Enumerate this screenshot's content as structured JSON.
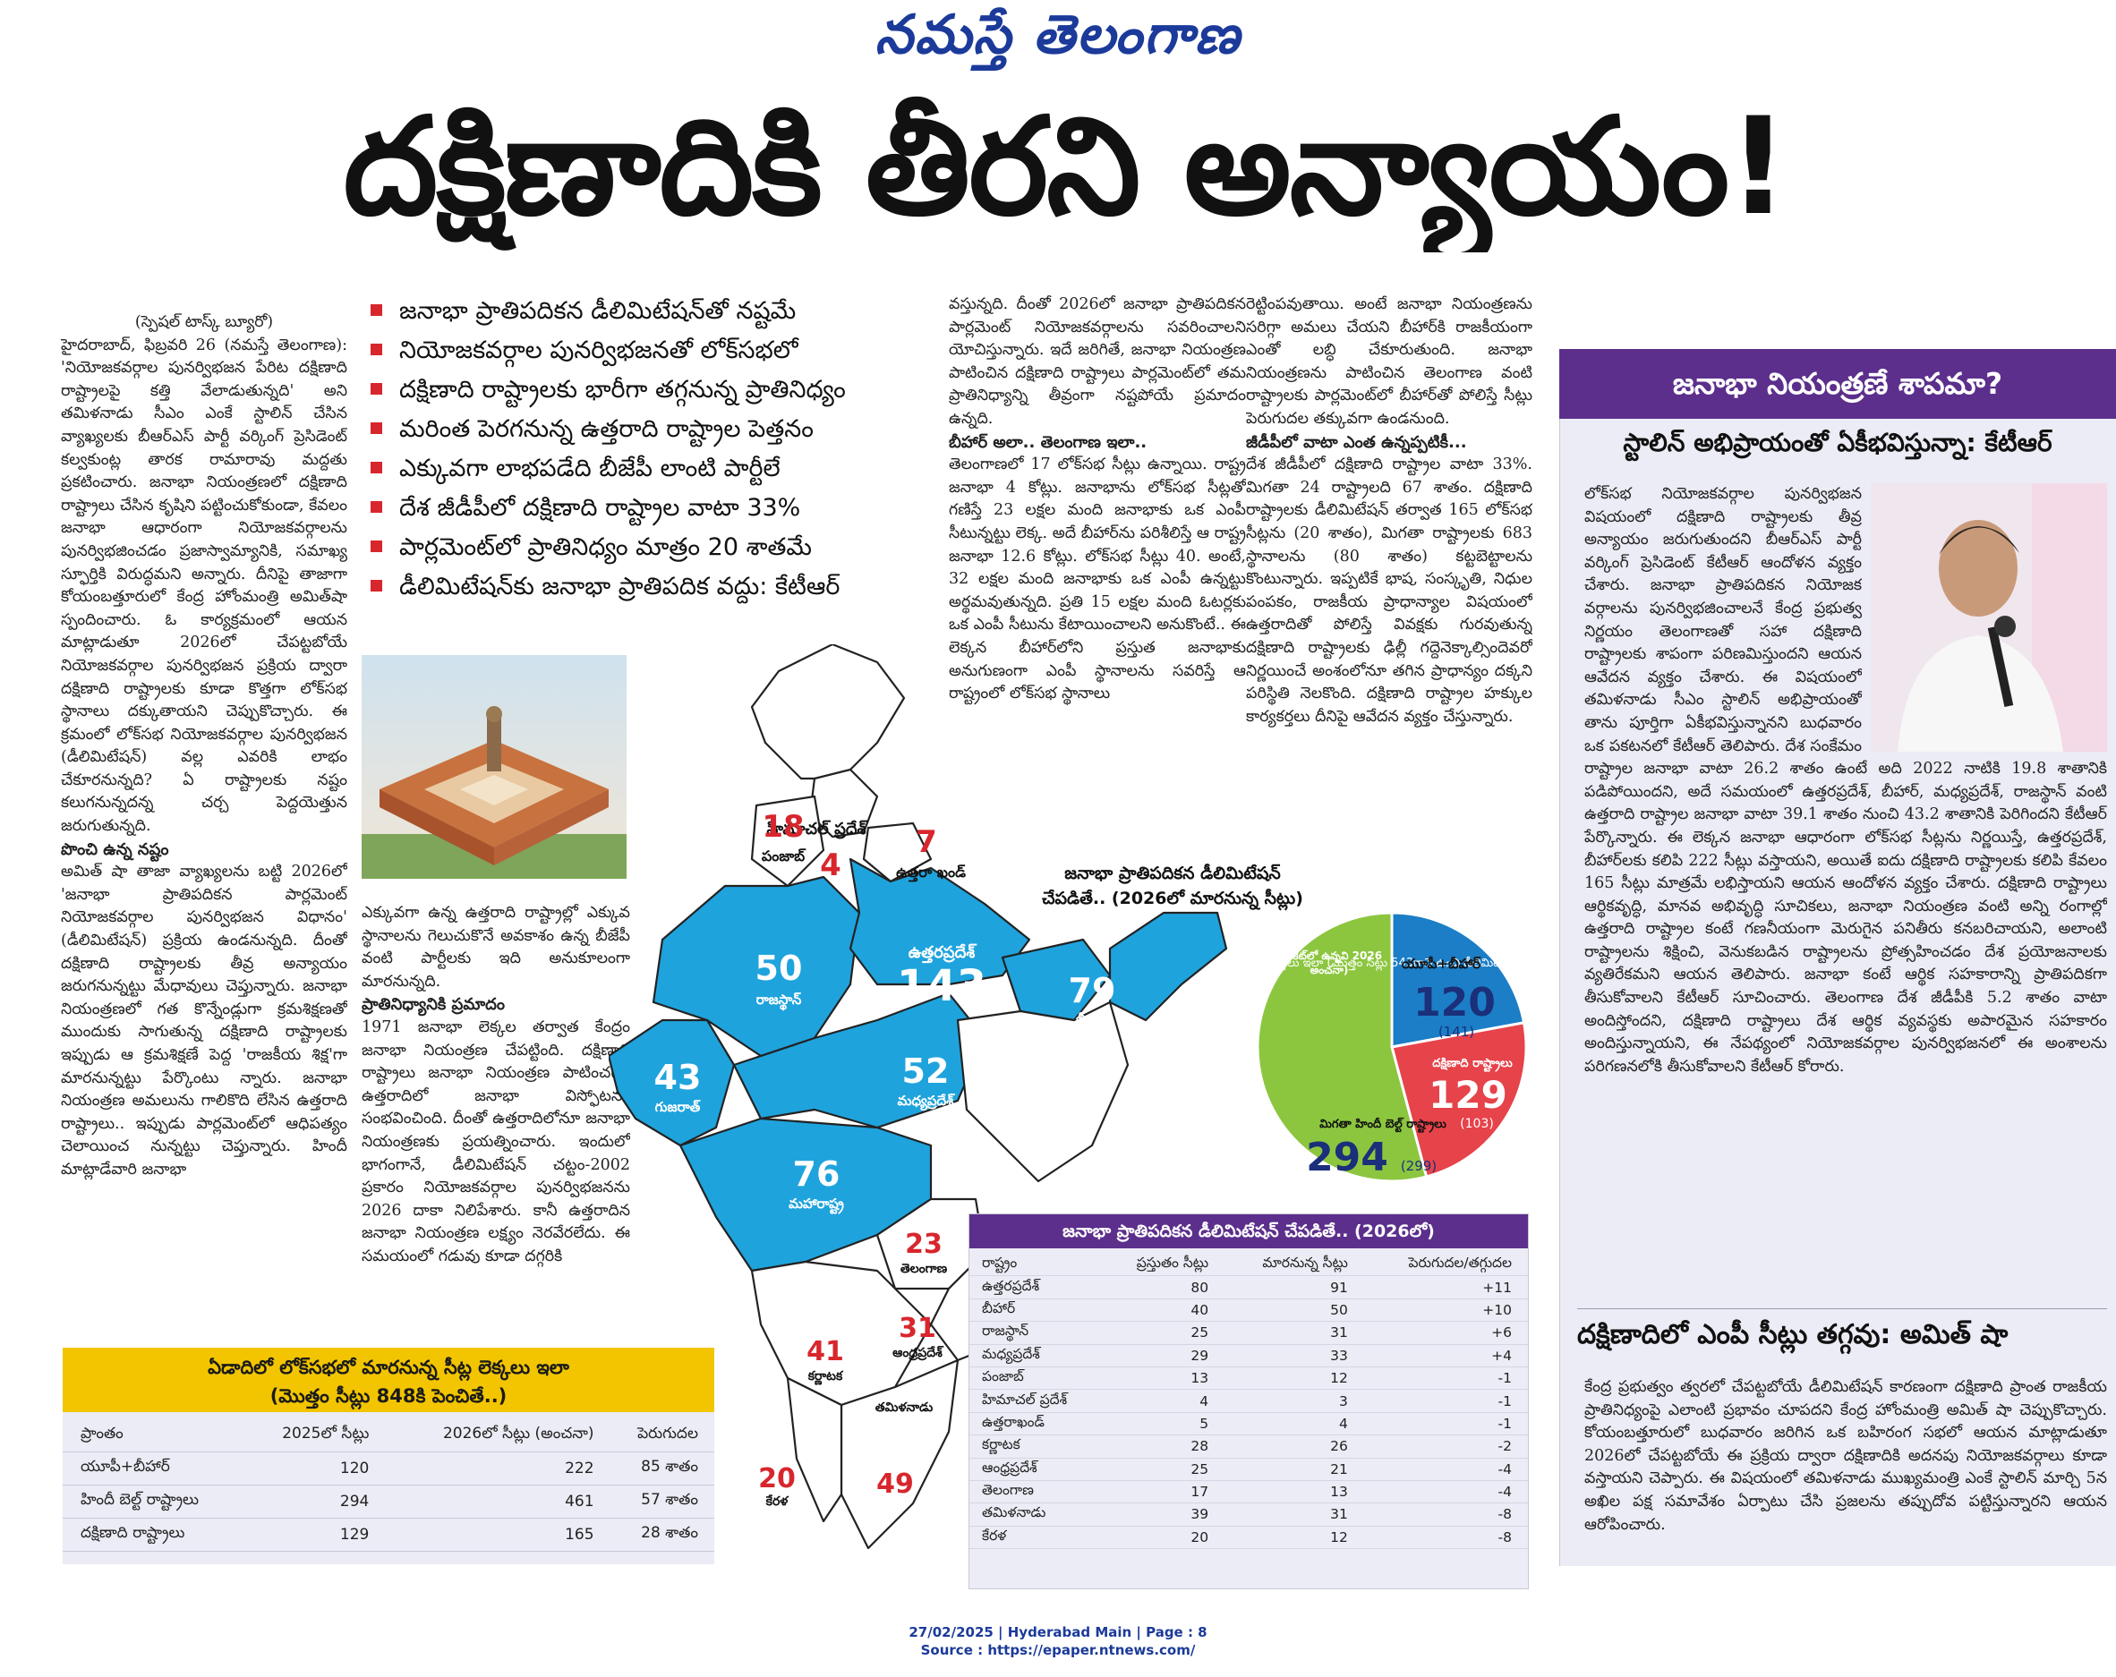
{
  "masthead": "నమస్తే తెలంగాణ",
  "headline": "దక్షిణాదికి తీరని అన్యాయం!",
  "bullets": [
    "జనాభా ప్రాతిపదికన డీలిమిటేషన్‌తో నష్టమే",
    "నియోజకవర్గాల పునర్విభజనతో లోక్‌సభలో",
    "దక్షిణాది రాష్ట్రాలకు భారీగా తగ్గనున్న ప్రాతినిధ్యం",
    "మరింత పెరగనున్న ఉత్తరాది రాష్ట్రాల పెత్తనం",
    "ఎక్కువగా లాభపడేది బీజేపీ లాంటి పార్టీలే",
    "దేశ జీడీపీలో దక్షిణాది రాష్ట్రాల వాటా 33%",
    "పార్లమెంట్‌లో ప్రాతినిధ్యం మాత్రం 20 శాతమే",
    "డీలిమిటేషన్‌కు జనాభా ప్రాతిపదిక వద్దు: కేటీఆర్"
  ],
  "col1": {
    "byline": "(స్పెషల్ టాస్క్ బ్యూరో)",
    "para1": "హైదరాబాద్, ఫిబ్రవరి 26 (నమస్తే తెలంగాణ): 'నియోజకవర్గాల పునర్విభజన పేరిట దక్షిణాది రాష్ట్రాలపై కత్తి వేలాడుతున్నది' అని తమిళనాడు సీఎం ఎంకే స్టాలిన్ చేసిన వ్యాఖ్యలకు బీఆర్ఎస్ పార్టీ వర్కింగ్ ప్రెసిడెంట్ కల్వకుంట్ల తారక రామారావు మద్దతు ప్రకటించారు. జనాభా నియంత్రణలో దక్షిణాది రాష్ట్రాలు చేసిన కృషిని పట్టించుకోకుండా, కేవలం జనాభా ఆధారంగా నియోజకవర్గాలను పునర్విభజించడం ప్రజాస్వామ్యానికి, సమాఖ్య స్ఫూర్తికి విరుద్ధమని అన్నారు. దీనిపై తాజాగా కోయంబత్తూరులో కేంద్ర హోంమంత్రి అమిత్‌షా స్పందించారు. ఓ కార్యక్రమంలో ఆయన మాట్లాడుతూ 2026లో చేపట్టబోయే నియోజకవర్గాల పునర్విభజన ప్రక్రియ ద్వారా దక్షిణాది రాష్ట్రాలకు కూడా కొత్తగా లోక్‌సభ స్థానాలు దక్కుతాయని చెప్పుకొచ్చారు. ఈ క్రమంలో లోక్‌సభ నియోజకవర్గాల పునర్విభజన (డీలిమిటేషన్) వల్ల ఎవరికి లాభం చేకూరనున్నది? ఏ రాష్ట్రాలకు నష్టం కలుగనున్నదన్న చర్చ పెద్దయెత్తున జరుగుతున్నది.",
    "sub1": "పొంచి ఉన్న నష్టం",
    "para2": "అమిత్ షా తాజా వ్యాఖ్యలను బట్టి 2026లో 'జనాభా ప్రాతిపదికన పార్లమెంట్ నియోజకవర్గాల పునర్విభజన విధానం' (డీలిమిటేషన్) ప్రక్రియ ఉండనున్నది. దీంతో దక్షిణాది రాష్ట్రాలకు తీవ్ర అన్యాయం జరుగనున్నట్టు మేధావులు చెప్తున్నారు. జనాభా నియంత్రణలో గత కొన్నేండ్లుగా క్రమశిక్షణతో ముందుకు సాగుతున్న దక్షిణాది రాష్ట్రాలకు ఇప్పుడు ఆ క్రమశిక్షణే పెద్ద 'రాజకీయ శిక్ష'గా మారనున్నట్టు పేర్కొంటు న్నారు. జనాభా నియంత్రణ అమలును గాలికొది లేసిన ఉత్తరాది రాష్ట్రాలు.. ఇప్పుడు పార్లమెంట్‌లో ఆధిపత్యం చెలాయించ నున్నట్టు చెప్తున్నారు. హిందీ మాట్లాడేవారి జనాభా"
  },
  "col2": {
    "para1": "ఎక్కువగా ఉన్న ఉత్తరాది రాష్ట్రాల్లో ఎక్కువ స్థానాలను గెలుచుకొనే అవకాశం ఉన్న బీజేపీ వంటి పార్టీలకు ఇది అనుకూలంగా మారనున్నది.",
    "sub1": "ప్రాతినిధ్యానికి ప్రమాదం",
    "para2": "1971 జనాభా లెక్కల తర్వాత కేంద్రం జనాభా నియంత్రణ చేపట్టింది. దక్షిణాది రాష్ట్రాలు జనాభా నియంత్రణ పాటించగా, ఉత్తరాదిలో జనాభా విస్ఫోటనం సంభవించింది. దీంతో ఉత్తరాదిలోనూ జనాభా నియంత్రణకు ప్రయత్నించారు. ఇందులో భాగంగానే, డీలిమిటేషన్ చట్టం-2002 ప్రకారం నియోజకవర్గాల పునర్విభజనను 2026 దాకా నిలిపేశారు. కానీ ఉత్తరాదిన జనాభా నియంత్రణ లక్ష్యం నెరవేరలేదు. ఈ సమయంలో గడువు కూడా దగ్గరికి"
  },
  "col3": {
    "para1": "వస్తున్నది. దీంతో 2026లో జనాభా ప్రాతిపదికన పార్లమెంట్ నియోజకవర్గాలను సవరించాలని యోచిస్తున్నారు. ఇదే జరిగితే, జనాభా నియంత్రణ పాటించిన దక్షిణాది రాష్ట్రాలు పార్లమెంట్‌లో తమ ప్రాతినిధ్యాన్ని తీవ్రంగా నష్టపోయే ప్రమాదం ఉన్నది.",
    "sub1": "బీహార్ అలా.. తెలంగాణ ఇలా..",
    "para2": "తెలంగాణలో 17 లోక్‌సభ సీట్లు ఉన్నాయి. రాష్ట్ర జనాభా 4 కోట్లు. జనాభాను లోక్‌సభ సీట్లతో గణిస్తే 23 లక్షల మంది జనాభాకు ఒక ఎంపీ సీటున్నట్టు లెక్క. అదే బీహార్‌ను పరిశీలిస్తే ఆ రాష్ట్ర జనాభా 12.6 కోట్లు. లోక్‌సభ సీట్లు 40. అంటే, 32 లక్షల మంది జనాభాకు ఒక ఎంపీ ఉన్నట్టు అర్థమవుతున్నది. ప్రతి 15 లక్షల మంది ఓటర్లకు ఒక ఎంపీ సీటును కేటాయించాలని అనుకొంటే.. ఈ లెక్కన బీహార్‌లోని ప్రస్తుత జనాభాకు అనుగుణంగా ఎంపీ స్థానాలను సవరిస్తే ఆ రాష్ట్రంలో లోక్‌సభ స్థానాలు"
  },
  "col4": {
    "para1": "రెట్టింపవుతాయి. అంటే జనాభా నియంత్రణను సరిగ్గా అమలు చేయని బీహార్‌కి రాజకీయంగా ఎంతో లబ్ధి చేకూరుతుంది. జనాభా నియంత్రణను పాటించిన తెలంగాణ వంటి రాష్ట్రాలకు పార్లమెంట్‌లో బీహార్‌తో పోలిస్తే సీట్లు పెరుగుదల తక్కువగా ఉండనుంది.",
    "sub1": "జీడీపీలో వాటా ఎంత ఉన్నప్పటికీ...",
    "para2": "దేశ జీడీపీలో దక్షిణాది రాష్ట్రాల వాటా 33%. మిగతా 24 రాష్ట్రాలది 67 శాతం. దక్షిణాది రాష్ట్రాలకు డీలిమిటేషన్ తర్వాత 165 లోక్‌సభ సీట్లను (20 శాతం), మిగతా రాష్ట్రాలకు 683 స్థానాలను (80 శాతం) కట్టబెట్టాలను కొంటున్నారు. ఇప్పటికే భాష, సంస్కృతి, నిధుల పంపకం, రాజకీయ ప్రాధాన్యాల విషయంలో ఉత్తరాదితో పోలిస్తే వివక్షకు గురవుతున్న దక్షిణాది రాష్ట్రాలకు ఢిల్లీ గద్దెనెక్కాల్సిందెవరో నిర్ణయించే అంశంలోనూ తగిన ప్రాధాన్యం దక్కని పరిస్థితి నెలకొంది. దక్షిణాది రాష్ట్రాల హక్కుల కార్యకర్తలు దీనిపై ఆవేదన వ్యక్తం చేస్తున్నారు."
  },
  "map": {
    "title_line1": "జనాభా ప్రాతిపదికన డీలిమిటేషన్",
    "title_line2": "చేపడితే.. (2026లో మారనున్న సీట్లు)",
    "states": [
      {
        "name": "హిమాచల్ ప్రదేశ్",
        "value": "4"
      },
      {
        "name": "పంజాబ్",
        "value": "18"
      },
      {
        "name": "ఉత్తరా ఖండ్",
        "value": "7"
      },
      {
        "name": "ఉత్తరప్రదేశ్",
        "value": "143"
      },
      {
        "name": "రాజస్థాన్",
        "value": "50"
      },
      {
        "name": "బీహార్",
        "value": "79"
      },
      {
        "name": "గుజరాత్",
        "value": "43"
      },
      {
        "name": "మధ్యప్రదేశ్",
        "value": "52"
      },
      {
        "name": "మహారాష్ట్ర",
        "value": "76"
      },
      {
        "name": "తెలంగాణ",
        "value": "23"
      },
      {
        "name": "ఆంధ్రప్రదేశ్",
        "value": "31"
      },
      {
        "name": "కర్ణాటక",
        "value": "41"
      },
      {
        "name": "తమిళనాడు",
        "value": "49"
      },
      {
        "name": "కేరళ",
        "value": "20"
      }
    ],
    "colors": {
      "blue": "#1fa3dd",
      "white": "#ffffff",
      "red_text": "#d8262d",
      "navy_text": "#1b2f7a"
    }
  },
  "pie": {
    "caption": "2025లో లోక్‌సభలో మారనున్న సీట్ల లెక్కలు ఇలా (మొత్తం సీట్లు 543గానే ఉంచి డీలిమిటేషన్ చేస్తే..)",
    "caption2": "(బ్రాకెట్‌లో ఉన్నవి 2026 అంచనా)",
    "segments": [
      {
        "label": "యూపీ+బీహార్",
        "value": 120,
        "projection": "(141)",
        "color": "#1b7ec6"
      },
      {
        "label": "దక్షిణాది రాష్ట్రాలు",
        "value": 129,
        "projection": "(103)",
        "color": "#e6434a"
      },
      {
        "label": "మిగతా హిందీ బెల్ట్ రాష్ట్రాలు",
        "value": 294,
        "projection": "(299)",
        "color": "#8cc63f"
      }
    ]
  },
  "table1": {
    "title_line1": "ఏడాదిలో లోక్‌సభలో మారనున్న సీట్ల లెక్కలు ఇలా",
    "title_line2": "(మొత్తం సీట్లు 848కి పెంచితే..)",
    "headers": [
      "ప్రాంతం",
      "2025లో సీట్లు",
      "2026లో సీట్లు (అంచనా)",
      "పెరుగుదల"
    ],
    "rows": [
      [
        "యూపీ+బీహార్",
        "120",
        "222",
        "85 శాతం"
      ],
      [
        "హిందీ బెల్ట్ రాష్ట్రాలు",
        "294",
        "461",
        "57 శాతం"
      ],
      [
        "దక్షిణాది రాష్ట్రాలు",
        "129",
        "165",
        "28 శాతం"
      ]
    ],
    "header_color": "#f2c500"
  },
  "table2": {
    "title": "జనాభా ప్రాతిపదికన డీలిమిటేషన్ చేపడితే.. (2026లో)",
    "headers": [
      "రాష్ట్రం",
      "ప్రస్తుతం సీట్లు",
      "మారనున్న సీట్లు",
      "పెరుగుదల/తగ్గుదల"
    ],
    "rows": [
      [
        "ఉత్తరప్రదేశ్",
        "80",
        "91",
        "+11"
      ],
      [
        "బీహార్",
        "40",
        "50",
        "+10"
      ],
      [
        "రాజస్థాన్",
        "25",
        "31",
        "+6"
      ],
      [
        "మధ్యప్రదేశ్",
        "29",
        "33",
        "+4"
      ],
      [
        "పంజాబ్",
        "13",
        "12",
        "-1"
      ],
      [
        "హిమాచల్ ప్రదేశ్",
        "4",
        "3",
        "-1"
      ],
      [
        "ఉత్తరాఖండ్",
        "5",
        "4",
        "-1"
      ],
      [
        "కర్ణాటక",
        "28",
        "26",
        "-2"
      ],
      [
        "ఆంధ్రప్రదేశ్",
        "25",
        "21",
        "-4"
      ],
      [
        "తెలంగాణ",
        "17",
        "13",
        "-4"
      ],
      [
        "తమిళనాడు",
        "39",
        "31",
        "-8"
      ],
      [
        "కేరళ",
        "20",
        "12",
        "-8"
      ]
    ],
    "header_color": "#5c2f8c"
  },
  "sidebar": {
    "title": "జనాభా నియంత్రణే శాపమా?",
    "subtitle": "స్టాలిన్ అభిప్రాయంతో ఏకీభవిస్తున్నా: కేటీఆర్",
    "para1": "లోక్‌సభ నియోజకవర్గాల పునర్విభజన విషయంలో దక్షిణాది రాష్ట్రాలకు తీవ్ర అన్యాయం జరుగుతుందని బీఆర్ఎస్ పార్టీ వర్కింగ్ ప్రెసిడెంట్ కేటీఆర్ ఆందోళన వ్యక్తం చేశారు. జనాభా ప్రాతిపదికన నియోజక వర్గాలను పునర్విభజించాలనే కేంద్ర ప్రభుత్వ నిర్ణయం తెలంగాణతో సహా దక్షిణాది రాష్ట్రాలకు శాపంగా పరిణమిస్తుందని ఆయన ఆవేదన వ్యక్తం చేశారు. ఈ విషయంలో తమిళనాడు సీఎం స్టాలిన్ అభిప్రాయంతో తాను పూర్తిగా ఏకీభవిస్తున్నానని బుధవారం ఒక ప్రకటనలో కేటీఆర్ తెలిపారు. దేశ సంక్షేమం కోసం జనాభా నియంత్రణను ఒక యజ్ఞంలా భావించి, దాన్ని విజయవంతంగా అమలు చేసిన దక్షిణాది రాష్ట్రాలను కేంద్రంలోని మోదీ ప్రభుత్వం శిక్షించాలని చూస్తోందని అని ఆయన ప్రశ్నించారు. జనాభా నియంత్రణలో దక్షిణాది రాష్ట్రాలు చేసిన కృషిని పట్టించుకోకుండా, కేవలం జనాభా ఆధారంగా నియోజకవర్గాలను పునర్విభజించడం ప్రజాస్వామ్యానికి, సమాఖ్య స్ఫూర్తికి విరుద్ధమని ఆయన స్పష్టం చేశారు. దేశ నిర్మాణంలో దక్షిణాది రాష్ట్రాలు అందించిన సహకారాన్ని ఎవరూ కాదనలేరని కేటీఆర్ పేర్కొన్నారు. '1951లో దక్షిణాది రాష్ట్రాల జనాభా వాటా 26.2 శాతం ఉంటే అది 2022 నాటికి 19.8 శాతానికి పడిపోయిందని, అదే సమయంలో ఉత్తరప్రదేశ్, బీహార్, మధ్యప్రదేశ్, రాజస్థాన్ వంటి ఉత్తరాది రాష్ట్రాల జనాభా వాటా 39.1 శాతం నుంచి 43.2 శాతానికి పెరిగిందని కేటీఆర్ పేర్కొన్నారు. ఈ లెక్కన జనాభా ఆధారంగా లోక్‌సభ సీట్లను నిర్ణయిస్తే, ఉత్తరప్రదేశ్, బీహార్‌లకు కలిపి 222 సీట్లు వస్తాయని, అయితే ఐదు దక్షిణాది రాష్ట్రాలకు కలిపి కేవలం 165 సీట్లు మాత్రమే లభిస్తాయని ఆయన ఆందోళన వ్యక్తం చేశారు. దక్షిణాది రాష్ట్రాలు ఆర్థికవృద్ధి, మానవ అభివృద్ధి సూచికలు, జనాభా నియంత్రణ వంటి అన్ని రంగాల్లో ఉత్తరాది రాష్ట్రాల కంటే గణనీయంగా మెరుగైన పనితీరు కనబరిచాయని, అలాంటి రాష్ట్రాలను శిక్షించి, వెనుకబడిన రాష్ట్రాలను ప్రోత్సహించడం దేశ ప్రయోజనాలకు వ్యతిరేకమని ఆయన తెలిపారు. జనాభా కంటే ఆర్థిక సహకారాన్ని ప్రాతిపదికగా తీసుకోవాలని కేటీఆర్ సూచించారు. తెలంగాణ దేశ జీడీపీకి 5.2 శాతం వాటా అందిస్తోందని, దక్షిణాది రాష్ట్రాలు దేశ ఆర్థిక వ్యవస్థకు అపారమైన సహకారం అందిస్తున్నాయని, ఈ నేపథ్యంలో నియోజకవర్గాల పునర్విభజనలో ఈ అంశాలను పరిగణనలోకి తీసుకోవాలని కేటీఆర్ కోరారు.",
    "heading2": "దక్షిణాదిలో ఎంపీ సీట్లు తగ్గవు: అమిత్ షా",
    "para2": "కేంద్ర ప్రభుత్వం త్వరలో చేపట్టబోయే డీలిమిటేషన్ కారణంగా దక్షిణాది ప్రాంత రాజకీయ ప్రాతినిధ్యంపై ఎలాంటి ప్రభావం చూపదని కేంద్ర హోంమంత్రి అమిత్ షా చెప్పుకొచ్చారు. కోయంబత్తూరులో బుధవారం జరిగిన ఒక బహిరంగ సభలో ఆయన మాట్లాడుతూ 2026లో చేపట్టబోయే ఈ ప్రక్రియ ద్వారా దక్షిణాదికి అదనపు నియోజకవర్గాలు కూడా వస్తాయని చెప్పారు. ఈ విషయంలో తమిళనాడు ముఖ్యమంత్రి ఎంకే స్టాలిన్ మార్చి 5న అఖిల పక్ష సమావేశం ఏర్పాటు చేసి ప్రజలను తప్పుదోవ పట్టిస్తున్నారని ఆయన ఆరోపించారు."
  },
  "footer": {
    "line1": "27/02/2025 | Hyderabad Main | Page : 8",
    "line2": "Source : https://epaper.ntnews.com/"
  }
}
